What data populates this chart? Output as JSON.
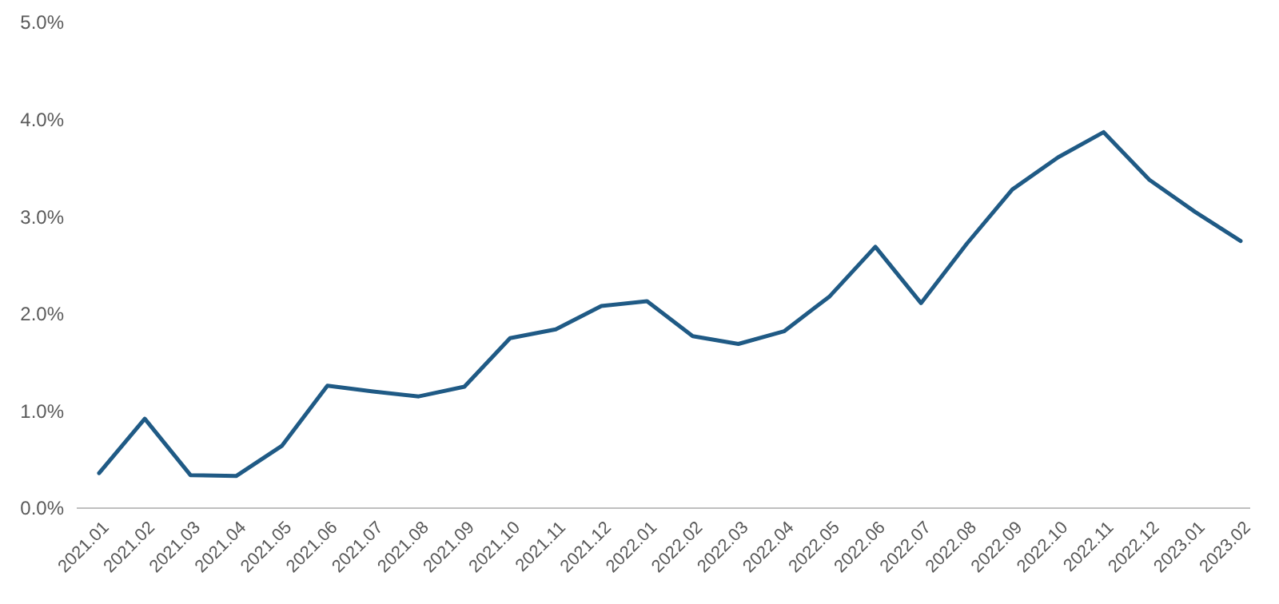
{
  "chart_data": {
    "type": "line",
    "categories": [
      "2021.01",
      "2021.02",
      "2021.03",
      "2021.04",
      "2021.05",
      "2021.06",
      "2021.07",
      "2021.08",
      "2021.09",
      "2021.10",
      "2021.11",
      "2021.12",
      "2022.01",
      "2022.02",
      "2022.03",
      "2022.04",
      "2022.05",
      "2022.06",
      "2022.07",
      "2022.08",
      "2022.09",
      "2022.10",
      "2022.11",
      "2022.12",
      "2023.01",
      "2023.02"
    ],
    "series": [
      {
        "color": "#1f5a85",
        "values": [
          0.36,
          0.92,
          0.34,
          0.33,
          0.64,
          1.26,
          1.2,
          1.15,
          1.25,
          1.75,
          1.84,
          2.08,
          2.13,
          1.77,
          1.69,
          1.82,
          2.18,
          2.69,
          2.11,
          2.72,
          3.28,
          3.61,
          3.87,
          3.38,
          3.05,
          2.75
        ]
      }
    ],
    "ylim": [
      0,
      5
    ],
    "yticks": [
      {
        "value": 0,
        "label": "0.0%"
      },
      {
        "value": 1,
        "label": "1.0%"
      },
      {
        "value": 2,
        "label": "2.0%"
      },
      {
        "value": 3,
        "label": "3.0%"
      },
      {
        "value": 4,
        "label": "4.0%"
      },
      {
        "value": 5,
        "label": "5.0%"
      }
    ],
    "grid": false,
    "marker": "none",
    "line_style": "solid"
  }
}
